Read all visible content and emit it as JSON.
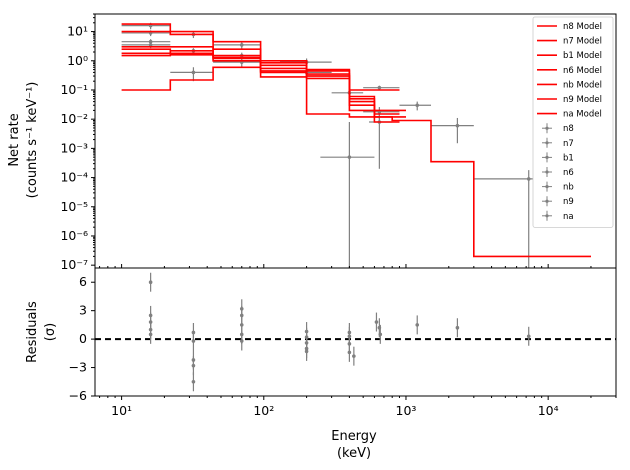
{
  "chart_data": {
    "type": "line",
    "xlabel": "Energy",
    "xlabel_unit": "(keV)",
    "xscale": "log",
    "top_panel": {
      "ylabel": "Net rate",
      "ylabel_unit": "(counts s⁻¹ keV⁻¹)",
      "yscale": "log",
      "ylim": [
        8e-08,
        40
      ],
      "xlim": [
        6.5,
        30000
      ],
      "legend_placement": "top-right",
      "y_tick_labels": [
        "10⁻⁷",
        "10⁻⁶",
        "10⁻⁵",
        "10⁻⁴",
        "10⁻³",
        "10⁻²",
        "10⁻¹",
        "10⁰",
        "10¹"
      ],
      "model_series": [
        {
          "name": "n8 Model",
          "color": "#ff0000",
          "bins": [
            [
              10,
              22,
              18
            ],
            [
              22,
              44,
              10
            ],
            [
              44,
              95,
              4.5
            ],
            [
              95,
              200,
              1.0
            ],
            [
              200,
              400,
              0.5
            ],
            [
              400,
              600,
              0.06
            ],
            [
              600,
              1000,
              0.012
            ]
          ]
        },
        {
          "name": "n7 Model",
          "color": "#ff0000",
          "bins": [
            [
              10,
              22,
              10
            ],
            [
              22,
              44,
              8
            ],
            [
              44,
              95,
              2.5
            ],
            [
              95,
              200,
              0.85
            ],
            [
              200,
              400,
              0.45
            ],
            [
              400,
              600,
              0.05
            ],
            [
              600,
              1000,
              0.02
            ]
          ]
        },
        {
          "name": "b1 Model",
          "color": "#ff0000",
          "bins": [
            [
              10,
              22,
              0.1
            ],
            [
              22,
              44,
              0.22
            ],
            [
              44,
              95,
              0.6
            ],
            [
              95,
              200,
              0.28
            ],
            [
              200,
              400,
              0.015
            ],
            [
              400,
              800,
              0.012
            ],
            [
              800,
              1500,
              0.009
            ],
            [
              1500,
              3000,
              0.00035
            ],
            [
              3000,
              20000,
              2e-07
            ]
          ]
        },
        {
          "name": "n6 Model",
          "color": "#ff0000",
          "bins": [
            [
              10,
              22,
              3
            ],
            [
              22,
              44,
              3
            ],
            [
              44,
              95,
              1.5
            ],
            [
              95,
              200,
              0.7
            ],
            [
              200,
              400,
              0.35
            ],
            [
              400,
              600,
              0.04
            ],
            [
              600,
              900,
              0.008
            ]
          ]
        },
        {
          "name": "nb Model",
          "color": "#ff0000",
          "bins": [
            [
              10,
              22,
              2.5
            ],
            [
              22,
              44,
              1.8
            ],
            [
              44,
              95,
              1.2
            ],
            [
              95,
              200,
              0.55
            ],
            [
              200,
              400,
              0.3
            ],
            [
              400,
              600,
              0.03
            ],
            [
              600,
              900,
              0.015
            ]
          ]
        },
        {
          "name": "n9 Model",
          "color": "#ff0000",
          "bins": [
            [
              10,
              22,
              1.8
            ],
            [
              22,
              44,
              2.2
            ],
            [
              44,
              95,
              1.3
            ],
            [
              95,
              200,
              0.45
            ],
            [
              200,
              400,
              0.3
            ],
            [
              400,
              900,
              0.1
            ]
          ]
        },
        {
          "name": "na Model",
          "color": "#ff0000",
          "bins": [
            [
              10,
              22,
              1.5
            ],
            [
              22,
              44,
              1.6
            ],
            [
              44,
              95,
              1.0
            ],
            [
              95,
              200,
              0.4
            ],
            [
              200,
              400,
              0.25
            ],
            [
              400,
              600,
              0.02
            ]
          ]
        }
      ],
      "data_points": [
        {
          "x": 16,
          "xlo": 10,
          "xhi": 22,
          "y": 16,
          "ylo": 12,
          "yhi": 20
        },
        {
          "x": 16,
          "xlo": 10,
          "xhi": 22,
          "y": 9,
          "ylo": 7,
          "yhi": 11
        },
        {
          "x": 16,
          "xlo": 10,
          "xhi": 22,
          "y": 4.5,
          "ylo": 3.5,
          "yhi": 5.5
        },
        {
          "x": 16,
          "xlo": 10,
          "xhi": 22,
          "y": 3.5,
          "ylo": 2.7,
          "yhi": 4.3
        },
        {
          "x": 32,
          "xlo": 22,
          "xhi": 44,
          "y": 8,
          "ylo": 6,
          "yhi": 10
        },
        {
          "x": 32,
          "xlo": 22,
          "xhi": 44,
          "y": 2.2,
          "ylo": 1.7,
          "yhi": 2.7
        },
        {
          "x": 32,
          "xlo": 22,
          "xhi": 44,
          "y": 0.4,
          "ylo": 0.2,
          "yhi": 0.6
        },
        {
          "x": 70,
          "xlo": 44,
          "xhi": 95,
          "y": 3.5,
          "ylo": 2.5,
          "yhi": 4.5
        },
        {
          "x": 70,
          "xlo": 44,
          "xhi": 95,
          "y": 1.5,
          "ylo": 1.1,
          "yhi": 1.9
        },
        {
          "x": 70,
          "xlo": 44,
          "xhi": 95,
          "y": 0.9,
          "ylo": 0.6,
          "yhi": 1.2
        },
        {
          "x": 200,
          "xlo": 130,
          "xhi": 300,
          "y": 0.9,
          "ylo": 0.6,
          "yhi": 1.2
        },
        {
          "x": 200,
          "xlo": 130,
          "xhi": 300,
          "y": 0.4,
          "ylo": 0.25,
          "yhi": 0.55
        },
        {
          "x": 400,
          "xlo": 300,
          "xhi": 500,
          "y": 0.08,
          "ylo": 0.04,
          "yhi": 0.12
        },
        {
          "x": 400,
          "xlo": 250,
          "xhi": 600,
          "y": 0.0005,
          "ylo": 8e-08,
          "yhi": 0.008
        },
        {
          "x": 650,
          "xlo": 500,
          "xhi": 900,
          "y": 0.12,
          "ylo": 0.1,
          "yhi": 0.14
        },
        {
          "x": 650,
          "xlo": 500,
          "xhi": 900,
          "y": 0.018,
          "ylo": 0.01,
          "yhi": 0.026
        },
        {
          "x": 650,
          "xlo": 550,
          "xhi": 800,
          "y": 0.008,
          "ylo": 0.0002,
          "yhi": 0.016
        },
        {
          "x": 1200,
          "xlo": 900,
          "xhi": 1500,
          "y": 0.03,
          "ylo": 0.02,
          "yhi": 0.04
        },
        {
          "x": 2300,
          "xlo": 1500,
          "xhi": 3000,
          "y": 0.006,
          "ylo": 0.0015,
          "yhi": 0.011
        },
        {
          "x": 7300,
          "xlo": 3000,
          "xhi": 20000,
          "y": 9e-05,
          "ylo": 8e-08,
          "yhi": 0.00018
        }
      ],
      "data_legend": [
        "n8",
        "n7",
        "b1",
        "n6",
        "nb",
        "n9",
        "na"
      ],
      "data_color": "#808080"
    },
    "bottom_panel": {
      "ylabel": "Residuals",
      "ylabel_unit": "(σ)",
      "ylim": [
        -6,
        7.5
      ],
      "y_ticks": [
        -6,
        -3,
        0,
        3,
        6
      ],
      "x_ticks": [
        10,
        100,
        1000,
        10000
      ],
      "x_tick_labels": [
        "10¹",
        "10²",
        "10³",
        "10⁴"
      ],
      "zero_line": "dashed",
      "residuals": [
        {
          "x": 16,
          "y": 6.0,
          "err": 1
        },
        {
          "x": 16,
          "y": 2.5,
          "err": 1
        },
        {
          "x": 16,
          "y": 1.8,
          "err": 1
        },
        {
          "x": 16,
          "y": 1.0,
          "err": 1
        },
        {
          "x": 16,
          "y": 0.5,
          "err": 1
        },
        {
          "x": 32,
          "y": 0.7,
          "err": 1
        },
        {
          "x": 32,
          "y": -0.2,
          "err": 1
        },
        {
          "x": 32,
          "y": -2.2,
          "err": 1
        },
        {
          "x": 32,
          "y": -2.8,
          "err": 1
        },
        {
          "x": 32,
          "y": -4.5,
          "err": 1
        },
        {
          "x": 70,
          "y": 3.2,
          "err": 1
        },
        {
          "x": 70,
          "y": 2.5,
          "err": 1
        },
        {
          "x": 70,
          "y": 1.5,
          "err": 1
        },
        {
          "x": 70,
          "y": 0.5,
          "err": 1
        },
        {
          "x": 70,
          "y": -0.2,
          "err": 1
        },
        {
          "x": 200,
          "y": 0.8,
          "err": 1
        },
        {
          "x": 200,
          "y": 0.2,
          "err": 1
        },
        {
          "x": 200,
          "y": -0.4,
          "err": 1
        },
        {
          "x": 200,
          "y": -1.0,
          "err": 1
        },
        {
          "x": 200,
          "y": -1.3,
          "err": 1
        },
        {
          "x": 400,
          "y": 0.7,
          "err": 1
        },
        {
          "x": 400,
          "y": 0.3,
          "err": 1
        },
        {
          "x": 400,
          "y": -0.5,
          "err": 1
        },
        {
          "x": 400,
          "y": -1.4,
          "err": 1
        },
        {
          "x": 430,
          "y": -1.8,
          "err": 1
        },
        {
          "x": 620,
          "y": 1.8,
          "err": 1
        },
        {
          "x": 650,
          "y": 1.2,
          "err": 1
        },
        {
          "x": 660,
          "y": 0.5,
          "err": 1
        },
        {
          "x": 1200,
          "y": 1.5,
          "err": 1
        },
        {
          "x": 2300,
          "y": 1.2,
          "err": 1
        },
        {
          "x": 7300,
          "y": 0.3,
          "err": 1
        }
      ]
    }
  }
}
